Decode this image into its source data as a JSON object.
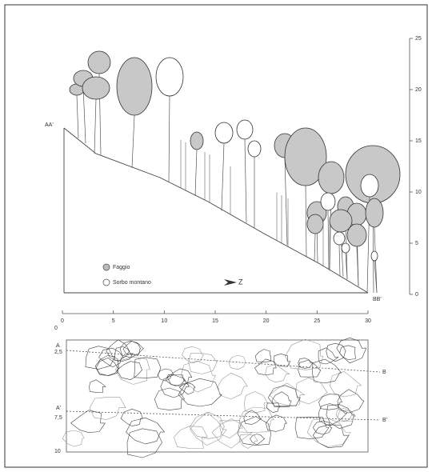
{
  "profile": {
    "left_label": "AA'",
    "right_label": "BB'",
    "height_ticks": [
      "0",
      "5",
      "10",
      "15",
      "20",
      "25"
    ],
    "legend": [
      {
        "label": "Faggio"
      },
      {
        "label": "Sorbo montano"
      }
    ],
    "north_arrow": "Z"
  },
  "plan": {
    "x_ticks": [
      "0",
      "5",
      "10",
      "15",
      "20",
      "25",
      "30"
    ],
    "y_ticks": [
      "0",
      "2,5",
      "7,5",
      "10"
    ],
    "section_labels_left": [
      "A",
      "A'"
    ],
    "section_labels_right": [
      "B",
      "B'"
    ]
  }
}
